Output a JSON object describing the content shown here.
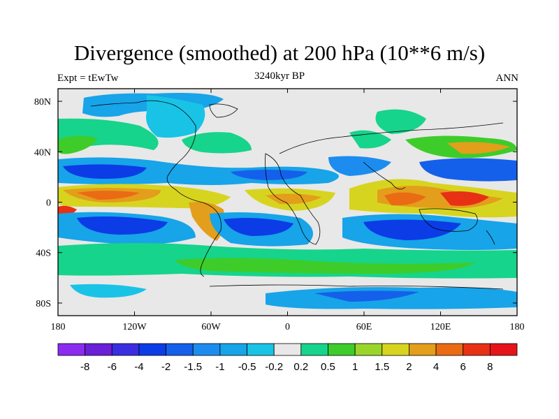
{
  "title": "Divergence (smoothed) at 200 hPa (10**6 m/s)",
  "subtitle_left": "Expt = tEwTw",
  "subtitle_center": "3240kyr BP",
  "subtitle_right": "ANN",
  "chart_data": {
    "type": "heatmap",
    "title": "Divergence (smoothed) at 200 hPa (10**6 m/s)",
    "variable": "Divergence (smoothed) at 200 hPa",
    "units": "10**6 m/s",
    "period": "ANN",
    "experiment": "tEwTw",
    "time": "3240kyr BP",
    "x_ticks": [
      {
        "value": -180,
        "label": "180"
      },
      {
        "value": -120,
        "label": "120W"
      },
      {
        "value": -60,
        "label": "60W"
      },
      {
        "value": 0,
        "label": "0"
      },
      {
        "value": 60,
        "label": "60E"
      },
      {
        "value": 120,
        "label": "120E"
      },
      {
        "value": 180,
        "label": "180"
      }
    ],
    "y_ticks": [
      {
        "value": 80,
        "label": "80N"
      },
      {
        "value": 40,
        "label": "40N"
      },
      {
        "value": 0,
        "label": "0"
      },
      {
        "value": -40,
        "label": "40S"
      },
      {
        "value": -80,
        "label": "80S"
      }
    ],
    "xlim": [
      -180,
      180
    ],
    "ylim": [
      -90,
      90
    ],
    "colorbar": {
      "levels": [
        "-8",
        "-6",
        "-4",
        "-2",
        "-1.5",
        "-1",
        "-0.5",
        "-0.2",
        "0.2",
        "0.5",
        "1",
        "1.5",
        "2",
        "4",
        "6",
        "8"
      ],
      "colors": [
        "#8c2bf0",
        "#6a1fd8",
        "#3a2ee0",
        "#0c3ce6",
        "#1560ea",
        "#1d8cef",
        "#17a4e8",
        "#19c3e6",
        "#e8e8e8",
        "#16d48b",
        "#3ecc2a",
        "#9ad62a",
        "#d7d420",
        "#e39e1b",
        "#ea6b14",
        "#e83015",
        "#e6141a"
      ]
    },
    "features": [
      {
        "region": "equatorial Pacific/Atlantic band",
        "sign": "positive",
        "value_range": [
          2,
          6
        ]
      },
      {
        "region": "Maritime Continent / West Pacific",
        "sign": "positive",
        "value_range": [
          4,
          8
        ]
      },
      {
        "region": "subtropical North Pacific",
        "sign": "negative",
        "value_range": [
          -4,
          -1
        ]
      },
      {
        "region": "subtropical South Pacific",
        "sign": "negative",
        "value_range": [
          -4,
          -1
        ]
      },
      {
        "region": "subtropical South Indian Ocean",
        "sign": "negative",
        "value_range": [
          -4,
          -1.5
        ]
      },
      {
        "region": "Southern Ocean band",
        "sign": "positive",
        "value_range": [
          0.5,
          1.5
        ]
      }
    ]
  }
}
